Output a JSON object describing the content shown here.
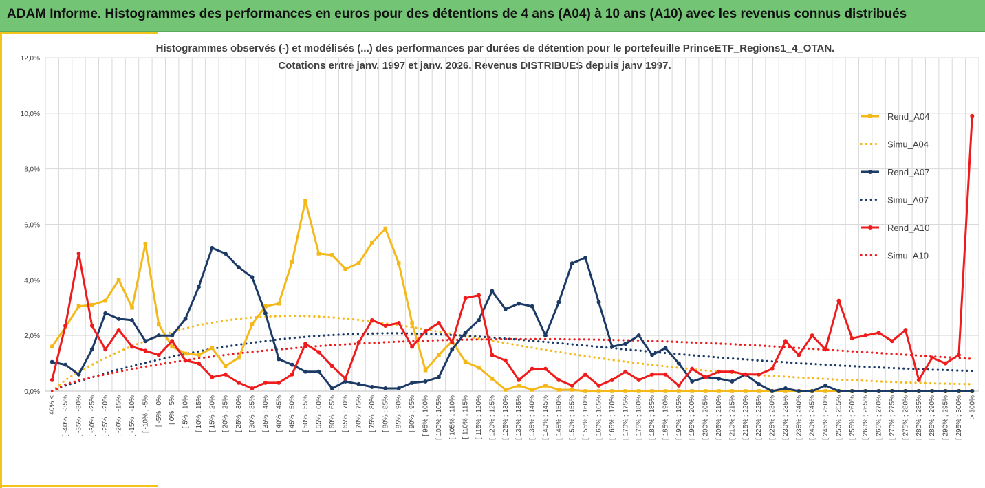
{
  "header": {
    "title": "ADAM Informe. Histogrammes des performances en euros pour des détentions de 4 ans (A04) à 10 ans (A10) avec les revenus connus distribués"
  },
  "colors": {
    "banner": "#74c476",
    "frame_accent": "#f2c31b",
    "a04": "#f4b919",
    "a07": "#1c3a66",
    "a10": "#ee1c1c",
    "grid": "#d9d9d9"
  },
  "chart_data": {
    "type": "line",
    "title": "Histogrammes observés (-) et modélisés (...) des performances par durées de détention pour  le portefeuille PrinceETF_Regions1_4_OTAN.",
    "subtitle": "Cotations  entre janv. 1997 et janv. 2026. Revenus DISTRIBUES depuis janv 1997.",
    "xlabel": "",
    "ylabel": "",
    "ylim": [
      0,
      12
    ],
    "y_ticks": [
      "0,0%",
      "2,0%",
      "4,0%",
      "6,0%",
      "8,0%",
      "10,0%",
      "12,0%"
    ],
    "grid": true,
    "legend_position": "right",
    "categories": [
      "-40% <",
      "[ -40% ; -35%",
      "[ -35% ; -30%",
      "[ -30% ; -25%",
      "[ -25% ; -20%",
      "[ -20% ; -15%",
      "[ -15% ; -10%",
      "[ -10% ; -5%",
      "[ -5% ; 0%",
      "[ 0% ; 5%",
      "[ 5% ; 10%",
      "[ 10% ; 15%",
      "[ 15% ; 20%",
      "[ 20% ; 25%",
      "[ 25% ; 30%",
      "[ 30% ; 35%",
      "[ 35% ; 40%",
      "[ 40% ; 45%",
      "[ 45% ; 50%",
      "[ 50% ; 55%",
      "[ 55% ; 60%",
      "[ 60% ; 65%",
      "[ 65% ; 70%",
      "[ 70% ; 75%",
      "[ 75% ; 80%",
      "[ 80% ; 85%",
      "[ 85% ; 90%",
      "[ 90% ; 95%",
      "[ 95% ; 100%",
      "[ 100% ; 105%",
      "[ 105% ; 110%",
      "[ 110% ; 115%",
      "[ 115% ; 120%",
      "[ 120% ; 125%",
      "[ 125% ; 130%",
      "[ 130% ; 135%",
      "[ 135% ; 140%",
      "[ 140% ; 145%",
      "[ 145% ; 150%",
      "[ 150% ; 155%",
      "[ 155% ; 160%",
      "[ 160% ; 165%",
      "[ 165% ; 170%",
      "[ 170% ; 175%",
      "[ 175% ; 180%",
      "[ 180% ; 185%",
      "[ 185% ; 190%",
      "[ 190% ; 195%",
      "[ 195% ; 200%",
      "[ 200% ; 205%",
      "[ 205% ; 210%",
      "[ 210% ; 215%",
      "[ 215% ; 220%",
      "[ 220% ; 225%",
      "[ 225% ; 230%",
      "[ 230% ; 235%",
      "[ 235% ; 240%",
      "[ 240% ; 245%",
      "[ 245% ; 250%",
      "[ 250% ; 255%",
      "[ 255% ; 260%",
      "[ 260% ; 265%",
      "[ 265% ; 270%",
      "[ 270% ; 275%",
      "[ 275% ; 280%",
      "[ 280% ; 285%",
      "[ 285% ; 290%",
      "[ 290% ; 295%",
      "[ 295% ; 300%",
      "> 300%"
    ],
    "series": [
      {
        "name": "Rend_A04",
        "style": "solid",
        "color": "#f4b919",
        "values": [
          1.6,
          2.3,
          3.05,
          3.1,
          3.25,
          4.0,
          3.0,
          5.3,
          2.4,
          1.6,
          1.35,
          1.3,
          1.55,
          0.9,
          1.2,
          2.4,
          3.05,
          3.15,
          4.65,
          6.85,
          4.95,
          4.9,
          4.4,
          4.6,
          5.35,
          5.85,
          4.6,
          2.45,
          0.75,
          1.3,
          1.8,
          1.05,
          0.85,
          0.45,
          0.05,
          0.2,
          0.05,
          0.2,
          0.05,
          0.05,
          0.0,
          0.0,
          0.0,
          0.0,
          0.0,
          0.0,
          0.0,
          0.0,
          0.0,
          0.0,
          0.0,
          0.0,
          0.0,
          0.0,
          0.0,
          0.0,
          0.0,
          0.0,
          0.0,
          0.0,
          0.0,
          0.0,
          0.0,
          0.0,
          0.0,
          0.0,
          0.0,
          0.0,
          0.0,
          0.0
        ]
      },
      {
        "name": "Simu_A04",
        "style": "dotted",
        "color": "#f4b919",
        "values": [
          0.0,
          0.4,
          0.7,
          0.95,
          1.2,
          1.42,
          1.62,
          1.8,
          1.97,
          2.12,
          2.26,
          2.37,
          2.46,
          2.54,
          2.6,
          2.65,
          2.68,
          2.7,
          2.71,
          2.7,
          2.68,
          2.65,
          2.61,
          2.56,
          2.5,
          2.44,
          2.37,
          2.3,
          2.22,
          2.14,
          2.06,
          1.98,
          1.89,
          1.81,
          1.73,
          1.64,
          1.56,
          1.48,
          1.41,
          1.33,
          1.26,
          1.19,
          1.12,
          1.06,
          1.0,
          0.94,
          0.89,
          0.84,
          0.79,
          0.74,
          0.7,
          0.66,
          0.62,
          0.58,
          0.55,
          0.52,
          0.49,
          0.46,
          0.44,
          0.41,
          0.39,
          0.37,
          0.35,
          0.33,
          0.31,
          0.3,
          0.28,
          0.27,
          0.26,
          0.25
        ]
      },
      {
        "name": "Rend_A07",
        "style": "solid",
        "color": "#1c3a66",
        "values": [
          1.05,
          0.95,
          0.6,
          1.5,
          2.8,
          2.6,
          2.55,
          1.8,
          2.0,
          2.0,
          2.6,
          3.75,
          5.15,
          4.95,
          4.45,
          4.1,
          2.8,
          1.15,
          0.95,
          0.7,
          0.7,
          0.1,
          0.35,
          0.25,
          0.15,
          0.1,
          0.1,
          0.3,
          0.35,
          0.5,
          1.5,
          2.1,
          2.55,
          3.6,
          2.95,
          3.15,
          3.05,
          2.0,
          3.2,
          4.6,
          4.8,
          3.2,
          1.6,
          1.7,
          2.0,
          1.3,
          1.55,
          1.0,
          0.35,
          0.5,
          0.45,
          0.35,
          0.6,
          0.25,
          0.0,
          0.1,
          0.0,
          0.0,
          0.2,
          0.0,
          0.0,
          0.0,
          0.0,
          0.0,
          0.0,
          0.0,
          0.0,
          0.0,
          0.0,
          0.0
        ]
      },
      {
        "name": "Simu_A07",
        "style": "dotted",
        "color": "#1c3a66",
        "values": [
          0.0,
          0.2,
          0.35,
          0.5,
          0.64,
          0.78,
          0.9,
          1.02,
          1.13,
          1.24,
          1.34,
          1.43,
          1.52,
          1.6,
          1.67,
          1.74,
          1.8,
          1.86,
          1.91,
          1.95,
          1.99,
          2.02,
          2.04,
          2.06,
          2.07,
          2.08,
          2.08,
          2.07,
          2.06,
          2.04,
          2.02,
          1.99,
          1.96,
          1.93,
          1.89,
          1.85,
          1.81,
          1.77,
          1.73,
          1.68,
          1.64,
          1.59,
          1.55,
          1.5,
          1.46,
          1.41,
          1.37,
          1.33,
          1.29,
          1.25,
          1.21,
          1.17,
          1.14,
          1.1,
          1.07,
          1.04,
          1.0,
          0.98,
          0.95,
          0.92,
          0.9,
          0.87,
          0.85,
          0.83,
          0.81,
          0.79,
          0.77,
          0.76,
          0.74,
          0.73
        ]
      },
      {
        "name": "Rend_A10",
        "style": "solid",
        "color": "#ee1c1c",
        "values": [
          0.4,
          2.35,
          4.95,
          2.35,
          1.5,
          2.2,
          1.6,
          1.45,
          1.3,
          1.8,
          1.1,
          1.0,
          0.5,
          0.6,
          0.3,
          0.1,
          0.3,
          0.3,
          0.6,
          1.7,
          1.4,
          0.9,
          0.45,
          1.75,
          2.55,
          2.35,
          2.45,
          1.6,
          2.15,
          2.45,
          1.75,
          3.35,
          3.45,
          1.3,
          1.1,
          0.4,
          0.8,
          0.8,
          0.4,
          0.2,
          0.6,
          0.2,
          0.4,
          0.7,
          0.4,
          0.6,
          0.6,
          0.2,
          0.8,
          0.5,
          0.7,
          0.7,
          0.6,
          0.6,
          0.8,
          1.8,
          1.3,
          2.0,
          1.5,
          3.25,
          1.9,
          2.0,
          2.1,
          1.8,
          2.2,
          0.4,
          1.2,
          1.0,
          1.3,
          9.9
        ]
      },
      {
        "name": "Simu_A10",
        "style": "dotted",
        "color": "#ee1c1c",
        "values": [
          0.0,
          0.25,
          0.38,
          0.5,
          0.6,
          0.7,
          0.79,
          0.88,
          0.96,
          1.04,
          1.11,
          1.18,
          1.24,
          1.3,
          1.36,
          1.41,
          1.46,
          1.5,
          1.54,
          1.58,
          1.62,
          1.65,
          1.68,
          1.71,
          1.73,
          1.76,
          1.78,
          1.8,
          1.81,
          1.83,
          1.84,
          1.85,
          1.86,
          1.86,
          1.87,
          1.87,
          1.87,
          1.87,
          1.87,
          1.86,
          1.86,
          1.85,
          1.84,
          1.83,
          1.82,
          1.8,
          1.79,
          1.77,
          1.75,
          1.73,
          1.71,
          1.69,
          1.66,
          1.64,
          1.61,
          1.58,
          1.55,
          1.52,
          1.49,
          1.46,
          1.43,
          1.4,
          1.37,
          1.34,
          1.31,
          1.28,
          1.25,
          1.22,
          1.19,
          1.16
        ]
      }
    ]
  }
}
